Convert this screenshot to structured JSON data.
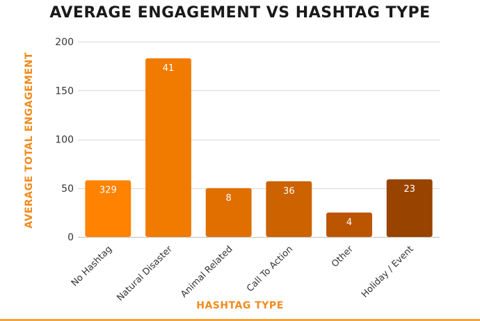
{
  "chart_data": {
    "type": "bar",
    "title": "AVERAGE ENGAGEMENT VS HASHTAG TYPE",
    "xlabel": "HASHTAG TYPE",
    "ylabel": "AVERAGE TOTAL ENGAGEMENT",
    "ylim": [
      0,
      200
    ],
    "yticks": [
      0,
      50,
      100,
      150,
      200
    ],
    "grid": true,
    "categories": [
      "No Hashtag",
      "Natural Disaster",
      "Animal Related",
      "Call To Action",
      "Other",
      "Holiday / Event"
    ],
    "values": [
      58,
      183,
      50,
      57,
      25,
      59
    ],
    "data_labels": [
      "329",
      "41",
      "8",
      "36",
      "4",
      "23"
    ],
    "bar_colors": [
      "#ff8300",
      "#f07b00",
      "#e06f00",
      "#cc6200",
      "#bb5500",
      "#994300"
    ]
  }
}
